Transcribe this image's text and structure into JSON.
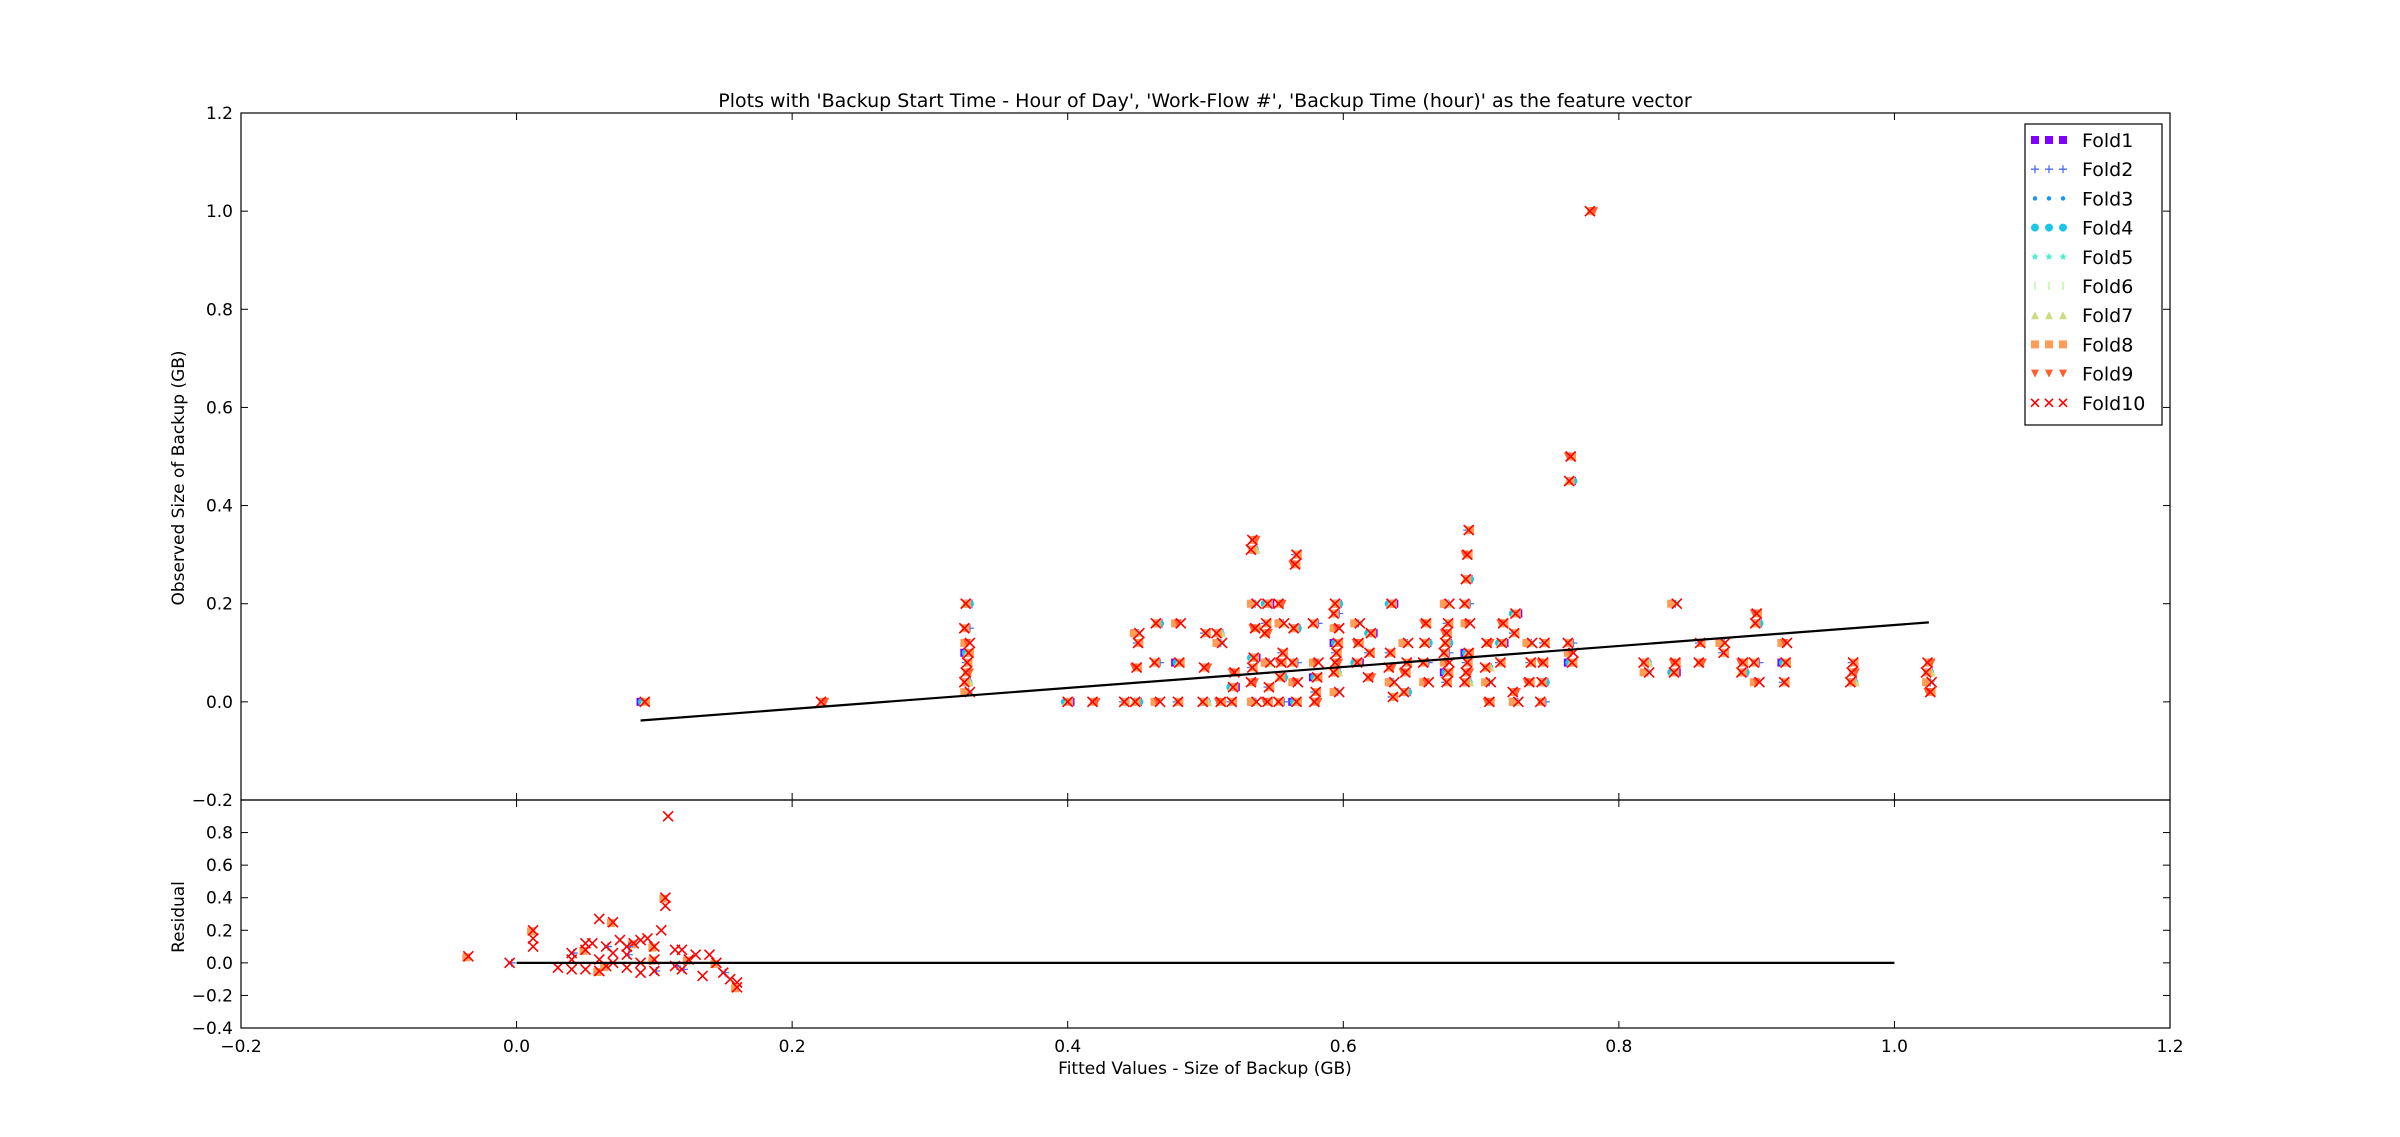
{
  "chart_data": [
    {
      "type": "scatter",
      "title": "Plots with 'Backup Start Time - Hour of Day', 'Work-Flow #', 'Backup Time (hour)' as the feature vector",
      "xlabel": "",
      "ylabel": "Observed Size of Backup (GB)",
      "xlim": [
        -0.2,
        1.2
      ],
      "ylim": [
        -0.2,
        1.2
      ],
      "xticks": [
        "",
        "",
        "",
        "",
        "",
        "",
        "",
        ""
      ],
      "yticks": [
        "−0.2",
        "0.0",
        "0.2",
        "0.4",
        "0.6",
        "0.8",
        "1.0",
        "1.2"
      ],
      "grid": false,
      "legend": {
        "location": "top-right",
        "entries": [
          {
            "name": "Fold1",
            "color": "#7f00ff",
            "marker": "square"
          },
          {
            "name": "Fold2",
            "color": "#4a6ff4",
            "marker": "plus"
          },
          {
            "name": "Fold3",
            "color": "#1996f3",
            "marker": "point"
          },
          {
            "name": "Fold4",
            "color": "#1ac7e6",
            "marker": "circle"
          },
          {
            "name": "Fold5",
            "color": "#4cf2ce",
            "marker": "star"
          },
          {
            "name": "Fold6",
            "color": "#b2f295",
            "marker": "vline"
          },
          {
            "name": "Fold7",
            "color": "#cbdc81",
            "marker": "triangle-up"
          },
          {
            "name": "Fold8",
            "color": "#ff9c55",
            "marker": "square"
          },
          {
            "name": "Fold9",
            "color": "#ff5f2e",
            "marker": "triangle-down"
          },
          {
            "name": "Fold10",
            "color": "#ff0000",
            "marker": "x"
          }
        ]
      },
      "fit_line": {
        "x": [
          0.09,
          1.025
        ],
        "y": [
          -0.038,
          0.162
        ],
        "color": "#000000"
      },
      "point_groups": [
        {
          "x": 0.092,
          "y": [
            0.0
          ]
        },
        {
          "x": 0.222,
          "y": [
            0.0
          ]
        },
        {
          "x": 0.327,
          "y": [
            0.02,
            0.04,
            0.06,
            0.08,
            0.1,
            0.12,
            0.15,
            0.2
          ]
        },
        {
          "x": 0.4,
          "y": [
            0.0
          ]
        },
        {
          "x": 0.42,
          "y": [
            0.0
          ]
        },
        {
          "x": 0.44,
          "y": [
            0.0
          ]
        },
        {
          "x": 0.45,
          "y": [
            0.0,
            0.07,
            0.12,
            0.14
          ]
        },
        {
          "x": 0.465,
          "y": [
            0.0,
            0.08,
            0.16
          ]
        },
        {
          "x": 0.48,
          "y": [
            0.0,
            0.08,
            0.16
          ]
        },
        {
          "x": 0.5,
          "y": [
            0.0,
            0.07,
            0.14
          ]
        },
        {
          "x": 0.51,
          "y": [
            0.0,
            0.12,
            0.14
          ]
        },
        {
          "x": 0.52,
          "y": [
            0.0,
            0.03,
            0.06
          ]
        },
        {
          "x": 0.535,
          "y": [
            0.0,
            0.04,
            0.07,
            0.09,
            0.15,
            0.2,
            0.31,
            0.33
          ]
        },
        {
          "x": 0.545,
          "y": [
            0.0,
            0.03,
            0.08,
            0.14,
            0.16,
            0.2
          ]
        },
        {
          "x": 0.555,
          "y": [
            0.0,
            0.05,
            0.08,
            0.1,
            0.16,
            0.2
          ]
        },
        {
          "x": 0.565,
          "y": [
            0.0,
            0.04,
            0.08,
            0.15,
            0.28,
            0.3
          ]
        },
        {
          "x": 0.58,
          "y": [
            0.0,
            0.02,
            0.05,
            0.08,
            0.16
          ]
        },
        {
          "x": 0.595,
          "y": [
            0.02,
            0.06,
            0.08,
            0.1,
            0.12,
            0.15,
            0.18,
            0.2
          ]
        },
        {
          "x": 0.61,
          "y": [
            0.08,
            0.12,
            0.16
          ]
        },
        {
          "x": 0.62,
          "y": [
            0.05,
            0.1,
            0.14
          ]
        },
        {
          "x": 0.635,
          "y": [
            0.01,
            0.04,
            0.07,
            0.1,
            0.2
          ]
        },
        {
          "x": 0.645,
          "y": [
            0.02,
            0.06,
            0.08,
            0.12
          ]
        },
        {
          "x": 0.66,
          "y": [
            0.04,
            0.08,
            0.12,
            0.16
          ]
        },
        {
          "x": 0.675,
          "y": [
            0.04,
            0.06,
            0.08,
            0.1,
            0.12,
            0.14,
            0.16,
            0.2
          ]
        },
        {
          "x": 0.69,
          "y": [
            0.04,
            0.06,
            0.08,
            0.1,
            0.16,
            0.2,
            0.25,
            0.3,
            0.35
          ]
        },
        {
          "x": 0.705,
          "y": [
            0.0,
            0.04,
            0.07,
            0.12
          ]
        },
        {
          "x": 0.715,
          "y": [
            0.08,
            0.12,
            0.16
          ]
        },
        {
          "x": 0.725,
          "y": [
            0.0,
            0.02,
            0.14,
            0.18
          ]
        },
        {
          "x": 0.735,
          "y": [
            0.04,
            0.08,
            0.12
          ]
        },
        {
          "x": 0.745,
          "y": [
            0.0,
            0.04,
            0.08,
            0.12
          ]
        },
        {
          "x": 0.765,
          "y": [
            0.08,
            0.1,
            0.12,
            0.45,
            0.5
          ]
        },
        {
          "x": 0.78,
          "y": [
            1.0
          ]
        },
        {
          "x": 0.82,
          "y": [
            0.06,
            0.08
          ]
        },
        {
          "x": 0.84,
          "y": [
            0.06,
            0.08,
            0.2
          ]
        },
        {
          "x": 0.86,
          "y": [
            0.08,
            0.12
          ]
        },
        {
          "x": 0.875,
          "y": [
            0.1,
            0.12
          ]
        },
        {
          "x": 0.89,
          "y": [
            0.06,
            0.08
          ]
        },
        {
          "x": 0.9,
          "y": [
            0.04,
            0.08,
            0.16,
            0.18
          ]
        },
        {
          "x": 0.92,
          "y": [
            0.04,
            0.08,
            0.12
          ]
        },
        {
          "x": 0.97,
          "y": [
            0.04,
            0.06,
            0.08
          ]
        },
        {
          "x": 1.025,
          "y": [
            0.02,
            0.04,
            0.06,
            0.08
          ]
        }
      ]
    },
    {
      "type": "scatter",
      "title": "",
      "xlabel": "Fitted Values - Size of Backup (GB)",
      "ylabel": "Residual",
      "xlim": [
        -0.2,
        1.2
      ],
      "ylim": [
        -0.4,
        1.0
      ],
      "xticks": [
        "−0.2",
        "0.0",
        "0.2",
        "0.4",
        "0.6",
        "0.8",
        "1.0",
        "1.2"
      ],
      "yticks": [
        "−0.4",
        "−0.2",
        "0.0",
        "0.2",
        "0.4",
        "0.6",
        "0.8",
        ""
      ],
      "grid": false,
      "zero_line": {
        "x": [
          0.0,
          1.0
        ],
        "y": [
          0.0,
          0.0
        ],
        "color": "#000000"
      },
      "points": [
        [
          -0.035,
          0.04
        ],
        [
          -0.005,
          0.0
        ],
        [
          0.012,
          0.1
        ],
        [
          0.012,
          0.15
        ],
        [
          0.012,
          0.2
        ],
        [
          0.03,
          -0.03
        ],
        [
          0.04,
          -0.04
        ],
        [
          0.04,
          0.06
        ],
        [
          0.05,
          0.08
        ],
        [
          0.05,
          -0.04
        ],
        [
          0.055,
          0.12
        ],
        [
          0.06,
          0.02
        ],
        [
          0.06,
          -0.05
        ],
        [
          0.065,
          0.1
        ],
        [
          0.06,
          0.27
        ],
        [
          0.07,
          0.0
        ],
        [
          0.07,
          0.25
        ],
        [
          0.075,
          0.14
        ],
        [
          0.08,
          -0.03
        ],
        [
          0.08,
          0.05
        ],
        [
          0.085,
          0.12
        ],
        [
          0.09,
          0.0
        ],
        [
          0.09,
          -0.06
        ],
        [
          0.095,
          0.15
        ],
        [
          0.1,
          0.1
        ],
        [
          0.1,
          -0.05
        ],
        [
          0.105,
          0.2
        ],
        [
          0.108,
          0.35
        ],
        [
          0.108,
          0.4
        ],
        [
          0.11,
          0.9
        ],
        [
          0.115,
          0.08
        ],
        [
          0.12,
          -0.04
        ],
        [
          0.125,
          0.02
        ],
        [
          0.13,
          0.05
        ],
        [
          0.135,
          -0.08
        ],
        [
          0.14,
          0.05
        ],
        [
          0.145,
          0.0
        ],
        [
          0.15,
          -0.06
        ],
        [
          0.155,
          -0.1
        ],
        [
          0.16,
          -0.12
        ],
        [
          0.16,
          -0.15
        ],
        [
          0.04,
          0.02
        ],
        [
          0.05,
          0.12
        ],
        [
          0.08,
          0.1
        ],
        [
          0.1,
          0.02
        ],
        [
          0.12,
          0.08
        ],
        [
          0.07,
          0.06
        ],
        [
          0.09,
          0.14
        ],
        [
          0.065,
          -0.02
        ],
        [
          0.115,
          -0.02
        ]
      ]
    }
  ]
}
